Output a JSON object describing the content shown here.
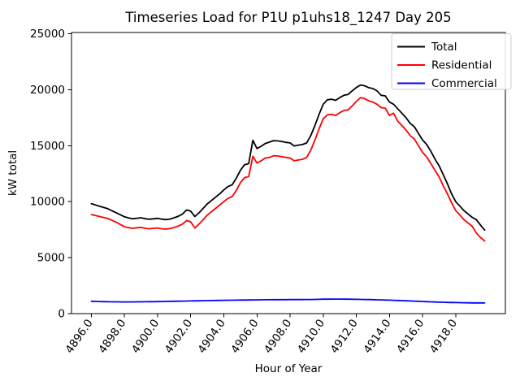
{
  "figure": {
    "background": "#ffffff"
  },
  "chart_data": {
    "type": "line",
    "title": "Timeseries Load for P1U p1uhs18_1247  Day 205",
    "xlabel": "Hour of Year",
    "ylabel": "kW total",
    "grid": false,
    "xlim": [
      4894.8,
      4921.0
    ],
    "ylim": [
      0,
      25110
    ],
    "xticks": [
      4896,
      4898,
      4900,
      4902,
      4904,
      4906,
      4908,
      4910,
      4912,
      4914,
      4916,
      4918
    ],
    "xtick_labels": [
      "4896.0",
      "4898.0",
      "4900.0",
      "4902.0",
      "4904.0",
      "4906.0",
      "4908.0",
      "4910.0",
      "4912.0",
      "4914.0",
      "4916.0",
      "4918.0"
    ],
    "yticks": [
      0,
      5000,
      10000,
      15000,
      20000,
      25000
    ],
    "ytick_labels": [
      "0",
      "5000",
      "10000",
      "15000",
      "20000",
      "25000"
    ],
    "x_start": 4896.0,
    "x_step": 0.25,
    "x_points": 96,
    "legend": {
      "position": "upper right",
      "entries": [
        "Total",
        "Residential",
        "Commercial"
      ]
    },
    "series": [
      {
        "name": "Total",
        "color": "#000000",
        "values": [
          9810,
          9700,
          9590,
          9480,
          9370,
          9180,
          9010,
          8830,
          8650,
          8550,
          8470,
          8520,
          8560,
          8480,
          8430,
          8470,
          8510,
          8440,
          8400,
          8450,
          8560,
          8700,
          8900,
          9260,
          9150,
          8680,
          9000,
          9400,
          9800,
          10100,
          10400,
          10700,
          11050,
          11350,
          11500,
          12100,
          12800,
          13300,
          13400,
          15480,
          14750,
          14950,
          15200,
          15320,
          15450,
          15430,
          15380,
          15300,
          15250,
          14980,
          15050,
          15100,
          15250,
          15900,
          16800,
          17800,
          18700,
          19100,
          19150,
          19050,
          19300,
          19500,
          19570,
          19900,
          20200,
          20420,
          20350,
          20180,
          20100,
          19900,
          19500,
          19450,
          18900,
          18700,
          18300,
          17900,
          17500,
          17000,
          16700,
          16100,
          15500,
          15100,
          14500,
          13800,
          13200,
          12400,
          11600,
          10700,
          10000,
          9600,
          9200,
          8900,
          8600,
          8400,
          7900,
          7460
        ]
      },
      {
        "name": "Residential",
        "color": "#ff0000",
        "values": [
          8850,
          8760,
          8670,
          8580,
          8490,
          8330,
          8170,
          7960,
          7760,
          7680,
          7620,
          7670,
          7700,
          7620,
          7580,
          7620,
          7650,
          7580,
          7550,
          7600,
          7700,
          7820,
          8000,
          8320,
          8200,
          7650,
          8000,
          8400,
          8800,
          9100,
          9400,
          9700,
          10000,
          10300,
          10450,
          11000,
          11700,
          12150,
          12250,
          14050,
          13450,
          13650,
          13900,
          13950,
          14100,
          14080,
          14020,
          13950,
          13900,
          13650,
          13720,
          13780,
          13950,
          14600,
          15500,
          16500,
          17400,
          17750,
          17800,
          17700,
          17950,
          18150,
          18200,
          18550,
          18950,
          19300,
          19200,
          19000,
          18900,
          18700,
          18400,
          18350,
          17700,
          17900,
          17200,
          16800,
          16400,
          15900,
          15600,
          15000,
          14400,
          14000,
          13400,
          12800,
          12200,
          11400,
          10700,
          9900,
          9200,
          8800,
          8400,
          8100,
          7800,
          7200,
          6800,
          6490
        ]
      },
      {
        "name": "Commercial",
        "color": "#0000ff",
        "values": [
          1100,
          1090,
          1080,
          1070,
          1060,
          1055,
          1050,
          1048,
          1045,
          1045,
          1048,
          1050,
          1055,
          1060,
          1065,
          1070,
          1075,
          1080,
          1090,
          1100,
          1105,
          1110,
          1120,
          1125,
          1130,
          1140,
          1150,
          1155,
          1160,
          1170,
          1175,
          1180,
          1190,
          1195,
          1200,
          1205,
          1210,
          1215,
          1220,
          1225,
          1230,
          1235,
          1240,
          1242,
          1245,
          1248,
          1250,
          1250,
          1252,
          1252,
          1255,
          1258,
          1260,
          1265,
          1270,
          1280,
          1290,
          1295,
          1300,
          1300,
          1298,
          1295,
          1290,
          1285,
          1280,
          1272,
          1265,
          1255,
          1245,
          1235,
          1225,
          1215,
          1205,
          1190,
          1175,
          1160,
          1145,
          1130,
          1115,
          1100,
          1085,
          1070,
          1055,
          1040,
          1025,
          1015,
          1005,
          995,
          985,
          978,
          972,
          966,
          960,
          958,
          955,
          952
        ]
      }
    ]
  }
}
